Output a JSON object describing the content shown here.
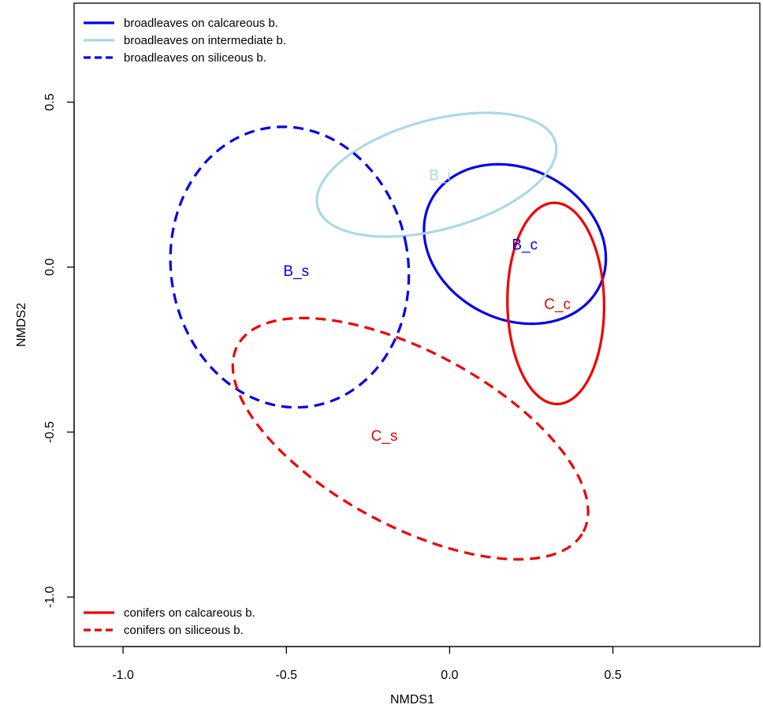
{
  "chart_data": {
    "type": "ellipse-ordination",
    "xlabel": "NMDS1",
    "ylabel": "NMDS2",
    "xlim": [
      -1.15,
      0.95
    ],
    "ylim": [
      -1.15,
      0.8
    ],
    "x_ticks": [
      -1.0,
      -0.5,
      0.0,
      0.5
    ],
    "x_tick_labels": [
      "-1.0",
      "-0.5",
      "0.0",
      "0.5"
    ],
    "y_ticks": [
      -1.0,
      -0.5,
      0.0,
      0.5
    ],
    "y_tick_labels": [
      "-1.0",
      "-0.5",
      "0.0",
      "0.5"
    ],
    "grid": false,
    "legends": [
      {
        "placement": "top-left",
        "entries": [
          {
            "label": "broadleaves on calcareous b.",
            "color": "#0000EE",
            "dash": "solid"
          },
          {
            "label": "broadleaves on intermediate b.",
            "color": "#ADD8E6",
            "dash": "solid"
          },
          {
            "label": "broadleaves on siliceous b.",
            "color": "#0000EE",
            "dash": "dashed"
          }
        ]
      },
      {
        "placement": "bottom-left",
        "entries": [
          {
            "label": "conifers on calcareous b.",
            "color": "#EE0000",
            "dash": "solid"
          },
          {
            "label": "conifers on siliceous b.",
            "color": "#EE0000",
            "dash": "dashed"
          }
        ]
      }
    ],
    "series": [
      {
        "label": "B_c",
        "color": "#0000EE",
        "dash": "solid",
        "center": [
          0.2,
          0.07
        ],
        "label_at": [
          0.23,
          0.07
        ],
        "ellipse": {
          "rx": 0.289,
          "ry": 0.229,
          "angle": -26
        }
      },
      {
        "label": "B_i",
        "color": "#ADD8E6",
        "dash": "solid",
        "center": [
          -0.04,
          0.28
        ],
        "label_at": [
          -0.03,
          0.28
        ],
        "ellipse": {
          "rx": 0.377,
          "ry": 0.166,
          "angle": 15
        }
      },
      {
        "label": "B_s",
        "color": "#0000EE",
        "dash": "dashed",
        "center": [
          -0.49,
          0.0
        ],
        "label_at": [
          -0.47,
          -0.01
        ],
        "ellipse": {
          "rx": 0.363,
          "ry": 0.427,
          "angle": 10
        }
      },
      {
        "label": "C_c",
        "color": "#EE0000",
        "dash": "solid",
        "center": [
          0.325,
          -0.11
        ],
        "label_at": [
          0.33,
          -0.11
        ],
        "ellipse": {
          "rx": 0.305,
          "ry": 0.148,
          "angle": 91
        }
      },
      {
        "label": "C_s",
        "color": "#EE0000",
        "dash": "dashed",
        "center": [
          -0.12,
          -0.52
        ],
        "label_at": [
          -0.2,
          -0.51
        ],
        "ellipse": {
          "rx": 0.6,
          "ry": 0.264,
          "angle": -28
        }
      }
    ]
  }
}
